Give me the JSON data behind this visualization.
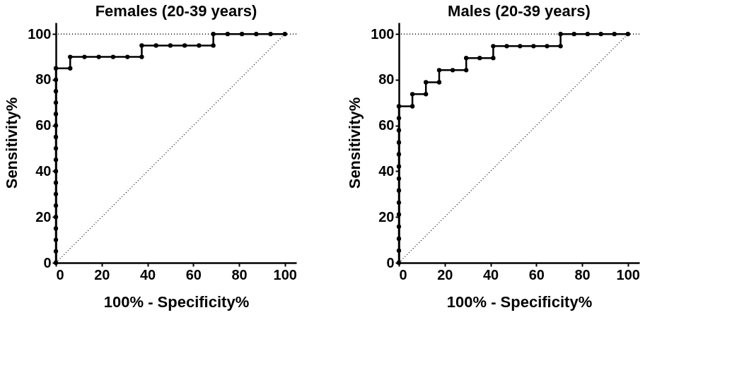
{
  "chart_data": [
    {
      "type": "line",
      "title": "Females (20-39 years)",
      "xlabel": "100% - Specificity%",
      "ylabel": "Sensitivity%",
      "xlim": [
        0,
        105
      ],
      "ylim": [
        0,
        105
      ],
      "xticks": [
        0,
        20,
        40,
        60,
        80,
        100
      ],
      "yticks": [
        0,
        20,
        40,
        60,
        80,
        100
      ],
      "grid": false,
      "series": [
        {
          "color": "#000000",
          "marker": "circle",
          "line_style": "solid",
          "x": [
            0,
            0,
            0,
            0,
            0,
            0,
            0,
            0,
            0,
            0,
            0,
            0,
            0,
            0,
            0,
            0,
            0,
            0,
            6.25,
            6.25,
            12.5,
            18.75,
            25,
            31.25,
            37.5,
            37.5,
            43.75,
            50,
            56.25,
            62.5,
            68.75,
            68.75,
            75,
            81.25,
            87.5,
            93.75,
            100
          ],
          "values": [
            0,
            5,
            10,
            15,
            20,
            25,
            30,
            35,
            40,
            45,
            50,
            55,
            60,
            65,
            70,
            75,
            80,
            85,
            85,
            90,
            90,
            90,
            90,
            90,
            90,
            95,
            95,
            95,
            95,
            95,
            95,
            100,
            100,
            100,
            100,
            100,
            100
          ]
        },
        {
          "type": "line",
          "color": "#000000",
          "marker": "none",
          "line_style": "dotted",
          "x": [
            0,
            100
          ],
          "values": [
            0,
            100
          ]
        }
      ],
      "ref_lines": [
        {
          "axis": "y",
          "value": 100,
          "color": "#000000",
          "line_style": "dotted"
        }
      ]
    },
    {
      "type": "line",
      "title": "Males (20-39 years)",
      "xlabel": "100% - Specificity%",
      "ylabel": "Sensitivity%",
      "xlim": [
        0,
        105
      ],
      "ylim": [
        0,
        105
      ],
      "xticks": [
        0,
        20,
        40,
        60,
        80,
        100
      ],
      "yticks": [
        0,
        20,
        40,
        60,
        80,
        100
      ],
      "grid": false,
      "series": [
        {
          "color": "#000000",
          "marker": "circle",
          "line_style": "solid",
          "x": [
            0,
            0,
            0,
            0,
            0,
            0,
            0,
            0,
            0,
            0,
            0,
            0,
            0,
            0,
            5.9,
            5.9,
            11.8,
            11.8,
            17.6,
            17.6,
            23.5,
            29.4,
            29.4,
            35.3,
            41.2,
            41.2,
            47.1,
            52.9,
            58.8,
            64.7,
            70.6,
            70.6,
            76.5,
            82.4,
            88.2,
            94.1,
            100
          ],
          "values": [
            0,
            5.3,
            10.5,
            15.8,
            21.1,
            26.3,
            31.6,
            36.8,
            42.1,
            47.4,
            52.6,
            57.9,
            63.2,
            68.4,
            68.4,
            73.7,
            73.7,
            78.9,
            78.9,
            84.2,
            84.2,
            84.2,
            89.5,
            89.5,
            89.5,
            94.7,
            94.7,
            94.7,
            94.7,
            94.7,
            94.7,
            100,
            100,
            100,
            100,
            100,
            100
          ]
        },
        {
          "type": "line",
          "color": "#000000",
          "marker": "none",
          "line_style": "dotted",
          "x": [
            0,
            100
          ],
          "values": [
            0,
            100
          ]
        }
      ],
      "ref_lines": [
        {
          "axis": "y",
          "value": 100,
          "color": "#000000",
          "line_style": "dotted"
        }
      ]
    }
  ]
}
